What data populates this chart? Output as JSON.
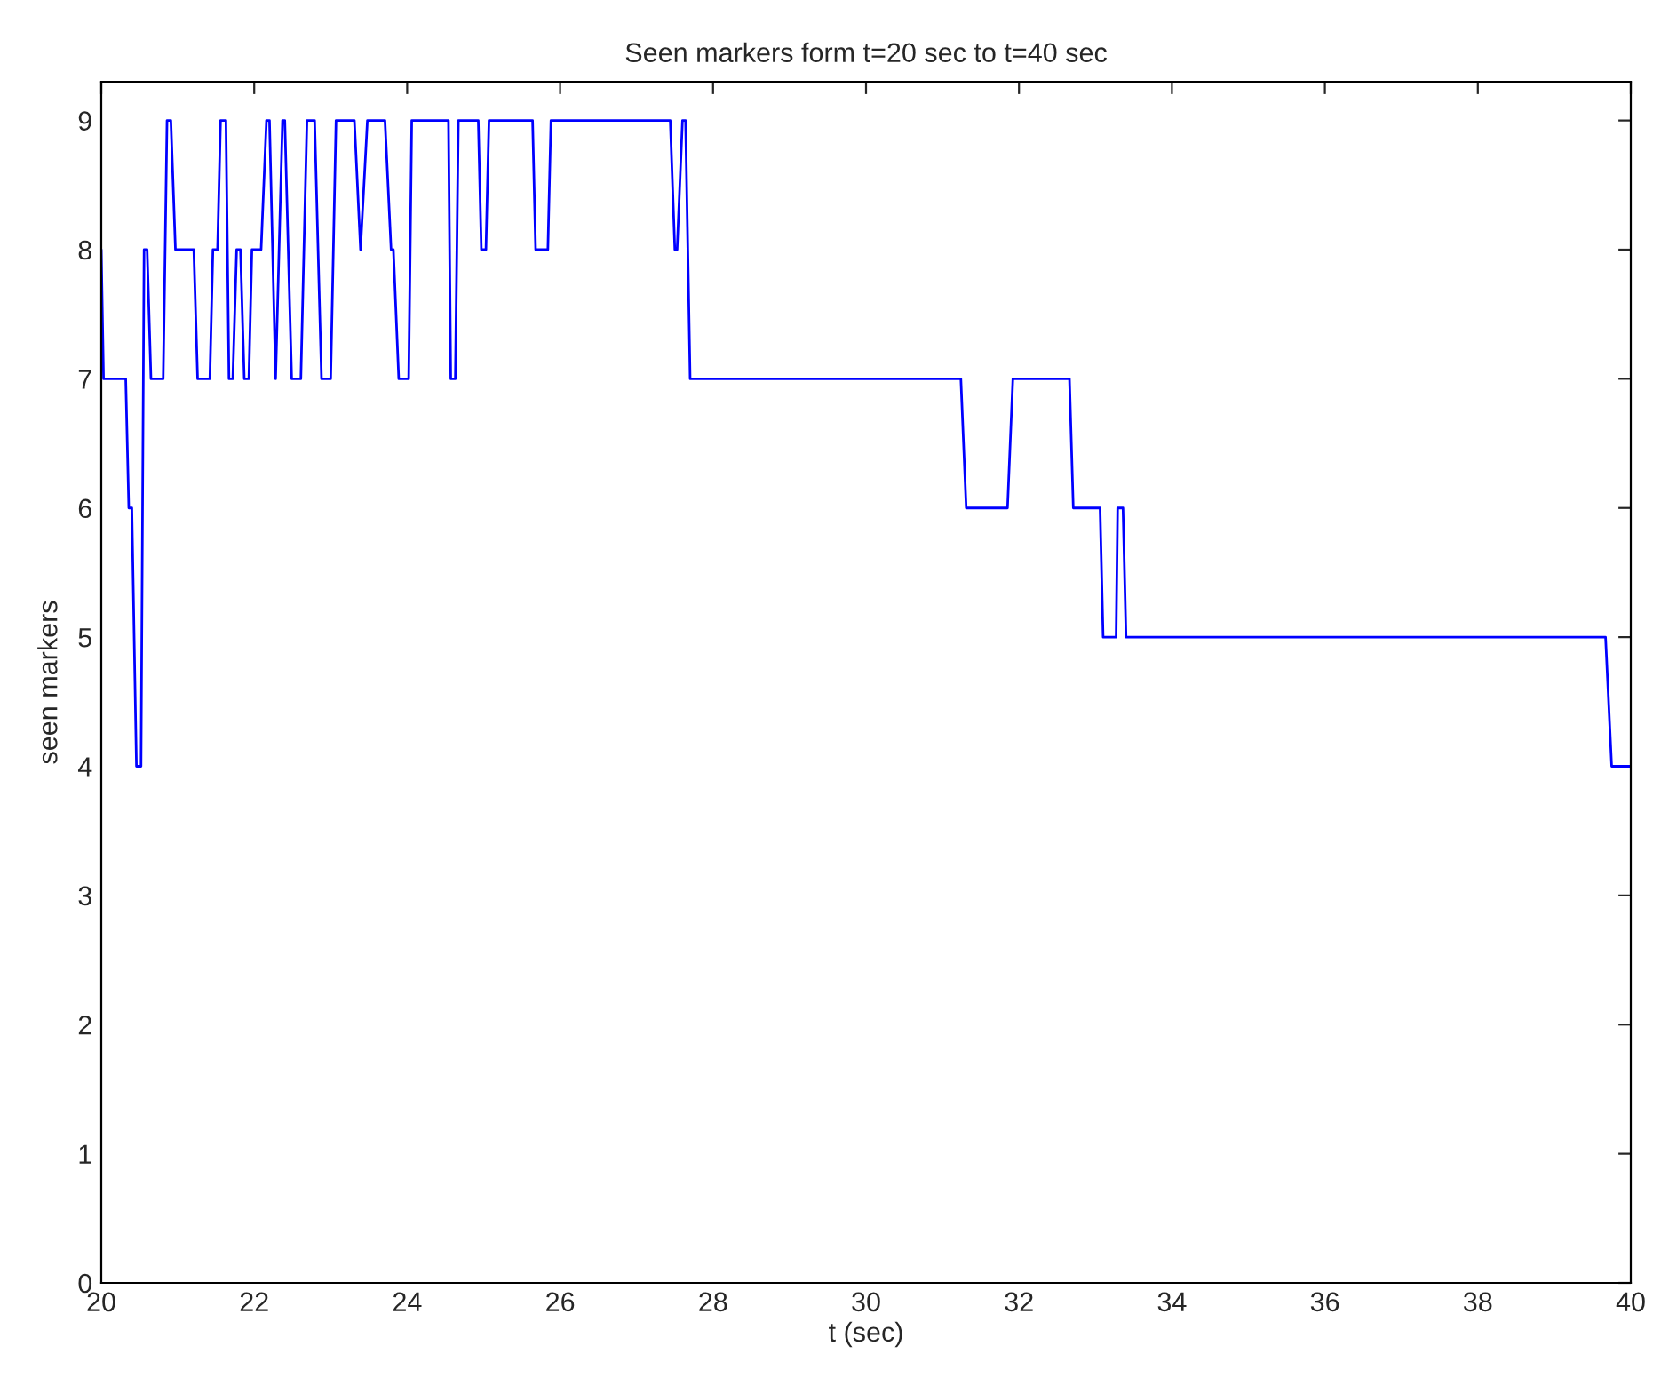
{
  "chart_data": {
    "type": "line",
    "title": "Seen markers form t=20 sec to t=40 sec",
    "xlabel": "t (sec)",
    "ylabel": "seen markers",
    "xlim": [
      20,
      40
    ],
    "xticks": [
      20,
      22,
      24,
      26,
      28,
      30,
      32,
      34,
      36,
      38,
      40
    ],
    "ylim": [
      0,
      9.3
    ],
    "yticks": [
      0,
      1,
      2,
      3,
      4,
      5,
      6,
      7,
      8,
      9
    ],
    "grid": false,
    "legend": false,
    "series": [
      {
        "color": "#0000ff",
        "x": [
          20.0,
          20.03,
          20.32,
          20.36,
          20.4,
          20.46,
          20.52,
          20.56,
          20.6,
          20.65,
          20.81,
          20.86,
          20.91,
          20.97,
          21.21,
          21.26,
          21.42,
          21.46,
          21.52,
          21.56,
          21.63,
          21.67,
          21.72,
          21.77,
          21.82,
          21.87,
          21.93,
          21.97,
          22.09,
          22.16,
          22.2,
          22.28,
          22.37,
          22.4,
          22.49,
          22.61,
          22.69,
          22.79,
          22.88,
          23.0,
          23.07,
          23.31,
          23.39,
          23.48,
          23.71,
          23.79,
          23.82,
          23.89,
          24.02,
          24.06,
          24.54,
          24.57,
          24.63,
          24.67,
          24.93,
          24.97,
          25.03,
          25.07,
          25.64,
          25.68,
          25.84,
          25.88,
          27.44,
          27.5,
          27.53,
          27.6,
          27.64,
          27.7,
          31.24,
          31.31,
          31.85,
          31.92,
          32.66,
          32.71,
          33.06,
          33.1,
          33.27,
          33.29,
          33.36,
          33.4,
          39.67,
          39.75,
          40.0
        ],
        "values": [
          8,
          7,
          7,
          6,
          6,
          4,
          4,
          8,
          8,
          7,
          7,
          9,
          9,
          8,
          8,
          7,
          7,
          8,
          8,
          9,
          9,
          7,
          7,
          8,
          8,
          7,
          7,
          8,
          8,
          9,
          9,
          7,
          9,
          9,
          7,
          7,
          9,
          9,
          7,
          7,
          9,
          9,
          8,
          9,
          9,
          8,
          8,
          7,
          7,
          9,
          9,
          7,
          7,
          9,
          9,
          8,
          8,
          9,
          9,
          8,
          8,
          9,
          9,
          8,
          8,
          9,
          9,
          7,
          7,
          6,
          6,
          7,
          7,
          6,
          6,
          5,
          5,
          6,
          6,
          5,
          5,
          4,
          4
        ]
      }
    ]
  }
}
